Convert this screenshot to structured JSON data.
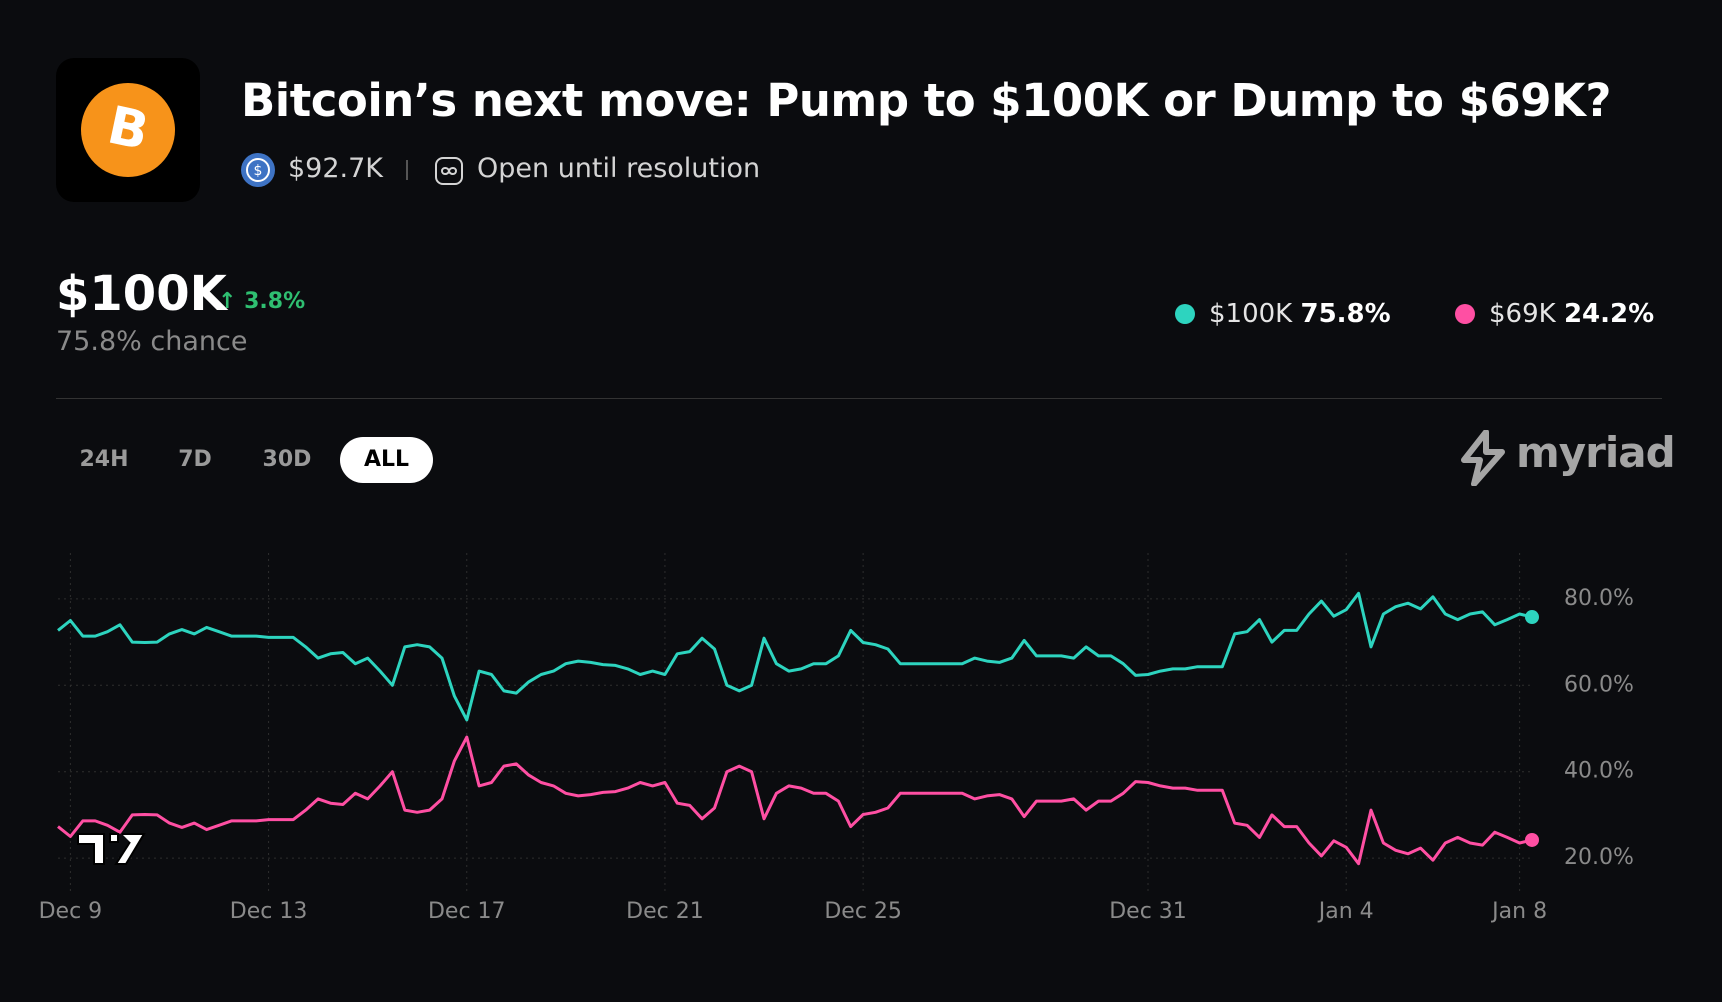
{
  "header": {
    "title": "Bitcoin’s next move: Pump to $100K or Dump to $69K?",
    "volume": "$92.7K",
    "status": "Open until resolution"
  },
  "outcome": {
    "name": "$100K",
    "change": "3.8%",
    "chance": "75.8%",
    "chance_text": "chance"
  },
  "ranges": [
    "24H",
    "7D",
    "30D",
    "ALL"
  ],
  "brand": "myriad",
  "chart_data": {
    "type": "line",
    "categories": [
      null,
      "Dec 9",
      null,
      null,
      null,
      null,
      null,
      null,
      null,
      null,
      null,
      null,
      null,
      null,
      null,
      null,
      null,
      "Dec 13",
      null,
      null,
      null,
      null,
      null,
      null,
      null,
      null,
      null,
      null,
      null,
      null,
      null,
      null,
      null,
      "Dec 17",
      null,
      null,
      null,
      null,
      null,
      null,
      null,
      null,
      null,
      null,
      null,
      null,
      null,
      null,
      null,
      "Dec 21",
      null,
      null,
      null,
      null,
      null,
      null,
      null,
      null,
      null,
      null,
      null,
      null,
      null,
      null,
      null,
      "Dec 25",
      null,
      null,
      null,
      null,
      null,
      null,
      null,
      null,
      null,
      null,
      null,
      null,
      null,
      null,
      null,
      null,
      null,
      null,
      null,
      null,
      null,
      null,
      "Dec 31",
      null,
      null,
      null,
      null,
      null,
      null,
      null,
      null,
      null,
      null,
      null,
      null,
      null,
      null,
      null,
      "Jan 4",
      null,
      null,
      null,
      null,
      null,
      null,
      null,
      null,
      null,
      null,
      null,
      null,
      null,
      "Jan 8",
      null
    ],
    "series": [
      {
        "name": "$100K",
        "color": "#2dd4bf",
        "current_label": "75.8%",
        "values": [
          72.7,
          75,
          71.4,
          71.4,
          72.4,
          74,
          70,
          69.9,
          70,
          71.9,
          72.9,
          71.9,
          73.4,
          72.4,
          71.4,
          71.4,
          71.4,
          71.1,
          71.1,
          71.1,
          68.9,
          66.3,
          67.3,
          67.6,
          65,
          66.3,
          63.3,
          60,
          68.9,
          69.4,
          68.9,
          66.3,
          57.5,
          52,
          63.3,
          62.5,
          58.7,
          58.2,
          60.8,
          62.5,
          63.3,
          65,
          65.6,
          65.3,
          64.8,
          64.6,
          63.8,
          62.5,
          63.3,
          62.5,
          67.3,
          67.8,
          70.9,
          68.4,
          60,
          58.7,
          60,
          70.9,
          65,
          63.3,
          63.8,
          65,
          65,
          66.8,
          72.7,
          69.9,
          69.4,
          68.4,
          65,
          65,
          65,
          65,
          65,
          65,
          66.3,
          65.6,
          65.3,
          66.3,
          70.4,
          66.8,
          66.8,
          66.8,
          66.3,
          68.9,
          66.8,
          66.8,
          65,
          62.3,
          62.5,
          63.3,
          63.8,
          63.8,
          64.3,
          64.3,
          64.3,
          71.9,
          72.4,
          75.2,
          70,
          72.7,
          72.7,
          76.5,
          79.5,
          76,
          77.5,
          81.3,
          68.9,
          76.5,
          78.2,
          79,
          77.7,
          80.5,
          76.5,
          75.2,
          76.5,
          77,
          74,
          75.2,
          76.5,
          75.8
        ]
      },
      {
        "name": "$69K",
        "color": "#ff4fa3",
        "current_label": "24.2%",
        "values": [
          27.3,
          25,
          28.6,
          28.6,
          27.6,
          26,
          30,
          30.1,
          30,
          28.1,
          27.1,
          28.1,
          26.6,
          27.6,
          28.6,
          28.6,
          28.6,
          28.9,
          28.9,
          28.9,
          31.1,
          33.7,
          32.7,
          32.4,
          35,
          33.7,
          36.7,
          40,
          31.1,
          30.6,
          31.1,
          33.7,
          42.5,
          48,
          36.7,
          37.5,
          41.3,
          41.8,
          39.2,
          37.5,
          36.7,
          35,
          34.4,
          34.7,
          35.2,
          35.4,
          36.2,
          37.5,
          36.7,
          37.5,
          32.7,
          32.2,
          29.1,
          31.6,
          40,
          41.3,
          40,
          29.1,
          35,
          36.7,
          36.2,
          35,
          35,
          33.2,
          27.3,
          30.1,
          30.6,
          31.6,
          35,
          35,
          35,
          35,
          35,
          35,
          33.7,
          34.4,
          34.7,
          33.7,
          29.6,
          33.2,
          33.2,
          33.2,
          33.7,
          31.1,
          33.2,
          33.2,
          35,
          37.7,
          37.5,
          36.7,
          36.2,
          36.2,
          35.7,
          35.7,
          35.7,
          28.1,
          27.6,
          24.8,
          30,
          27.3,
          27.3,
          23.5,
          20.5,
          24,
          22.5,
          18.7,
          31.1,
          23.5,
          21.8,
          21,
          22.3,
          19.5,
          23.5,
          24.8,
          23.5,
          23,
          26,
          24.8,
          23.5,
          24.2
        ]
      }
    ],
    "ylim": [
      14,
      86
    ],
    "yticks": [
      {
        "value": 20,
        "label": "20.0%"
      },
      {
        "value": 40,
        "label": "40.0%"
      },
      {
        "value": 60,
        "label": "60.0%"
      },
      {
        "value": 80,
        "label": "80.0%"
      }
    ],
    "grid": true
  }
}
